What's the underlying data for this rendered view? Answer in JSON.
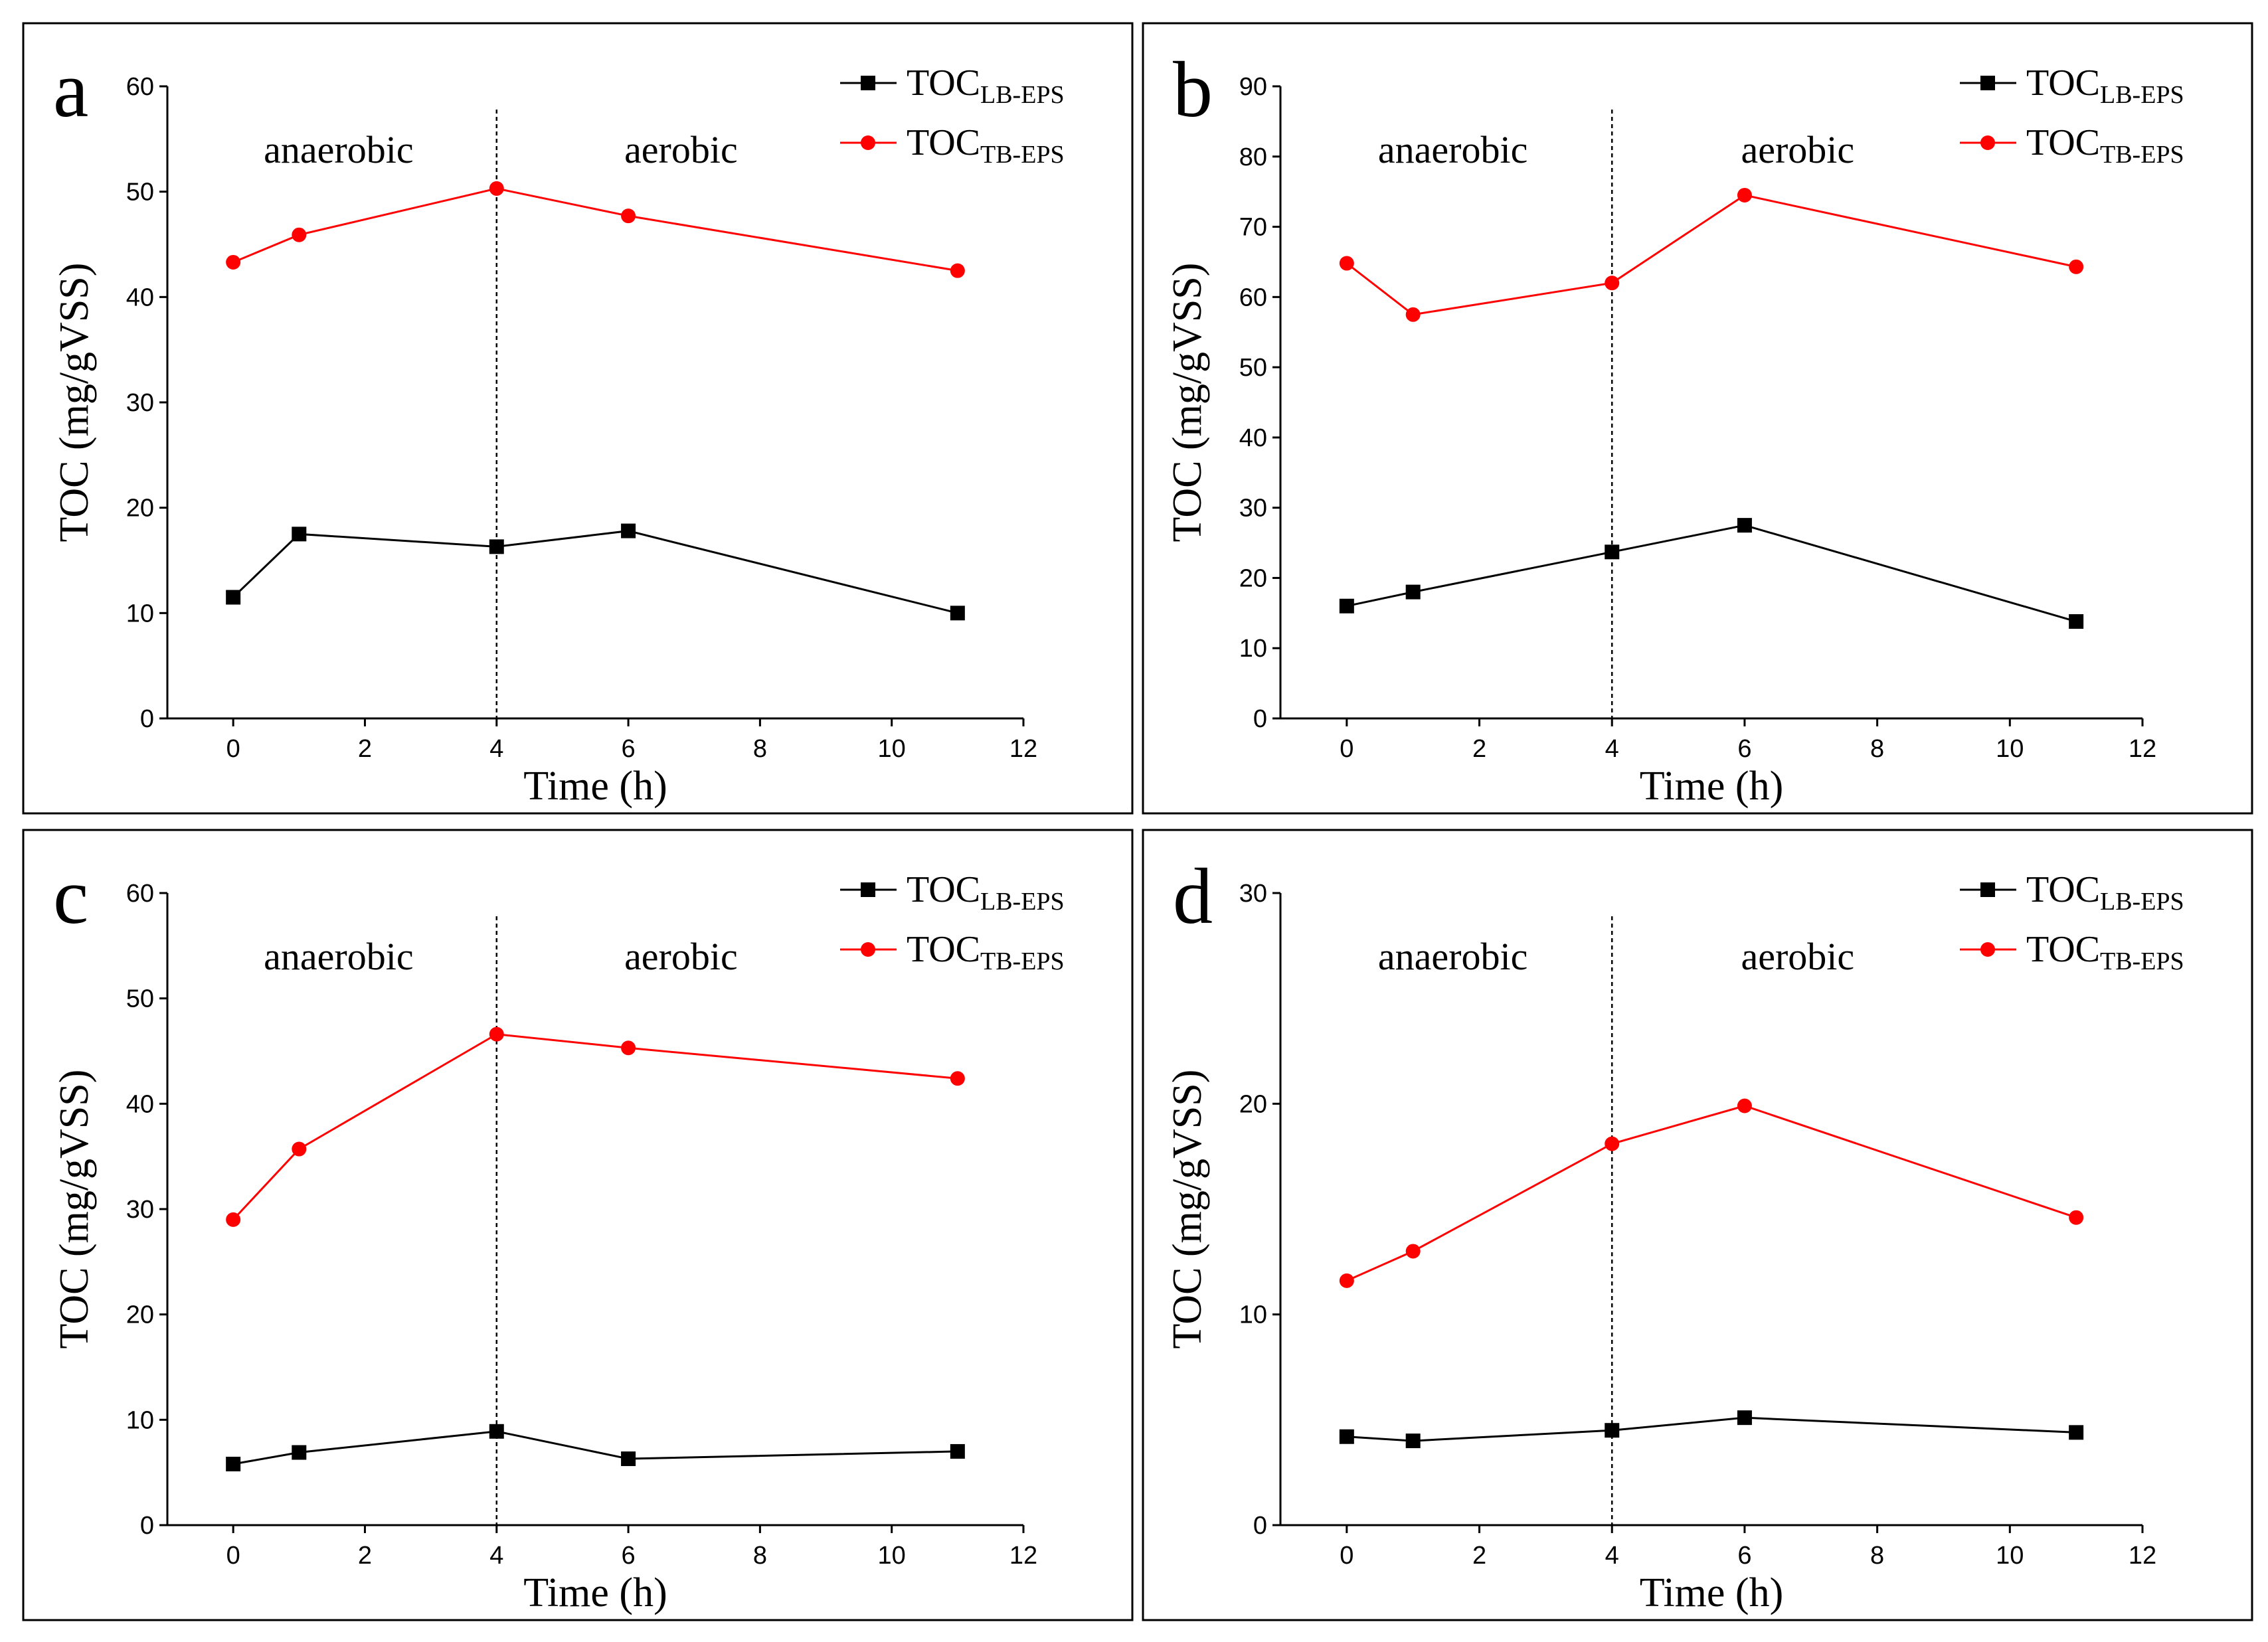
{
  "figure": {
    "series_names": {
      "lb": {
        "base": "TOC",
        "sub": "LB-EPS"
      },
      "tb": {
        "base": "TOC",
        "sub": "TB-EPS"
      }
    },
    "phase_labels": {
      "anaerobic": "anaerobic",
      "aerobic": "aerobic"
    },
    "colors": {
      "lb": "#000000",
      "tb": "#ff0000",
      "frame": "#000000"
    }
  },
  "chart_data": [
    {
      "panel": "a",
      "type": "line",
      "xlabel": "Time (h)",
      "ylabel": "TOC (mg/gVSS)",
      "xlim": [
        -1,
        12
      ],
      "ylim": [
        0,
        60
      ],
      "xticks": [
        0,
        2,
        4,
        6,
        8,
        10,
        12
      ],
      "yticks": [
        0,
        10,
        20,
        30,
        40,
        50,
        60
      ],
      "phase_boundary_x": 4,
      "x": [
        0,
        1,
        4,
        6,
        11
      ],
      "series": [
        {
          "name": "TOC LB-EPS",
          "marker": "square",
          "values": [
            11.5,
            17.5,
            16.3,
            17.8,
            10.0
          ]
        },
        {
          "name": "TOC TB-EPS",
          "marker": "circle",
          "values": [
            43.3,
            45.9,
            50.3,
            47.7,
            42.5
          ]
        }
      ]
    },
    {
      "panel": "b",
      "type": "line",
      "xlabel": "Time (h)",
      "ylabel": "TOC (mg/gVSS)",
      "xlim": [
        -1,
        12
      ],
      "ylim": [
        0,
        90
      ],
      "xticks": [
        0,
        2,
        4,
        6,
        8,
        10,
        12
      ],
      "yticks": [
        0,
        10,
        20,
        30,
        40,
        50,
        60,
        70,
        80,
        90
      ],
      "phase_boundary_x": 4,
      "x": [
        0,
        1,
        4,
        6,
        11
      ],
      "series": [
        {
          "name": "TOC LB-EPS",
          "marker": "square",
          "values": [
            16.0,
            18.0,
            23.7,
            27.5,
            13.8
          ]
        },
        {
          "name": "TOC TB-EPS",
          "marker": "circle",
          "values": [
            64.8,
            57.5,
            62.0,
            74.5,
            64.3
          ]
        }
      ]
    },
    {
      "panel": "c",
      "type": "line",
      "xlabel": "Time (h)",
      "ylabel": "TOC (mg/gVSS)",
      "xlim": [
        -1,
        12
      ],
      "ylim": [
        0,
        60
      ],
      "xticks": [
        0,
        2,
        4,
        6,
        8,
        10,
        12
      ],
      "yticks": [
        0,
        10,
        20,
        30,
        40,
        50,
        60
      ],
      "phase_boundary_x": 4,
      "x": [
        0,
        1,
        4,
        6,
        11
      ],
      "series": [
        {
          "name": "TOC LB-EPS",
          "marker": "square",
          "values": [
            5.8,
            6.9,
            8.9,
            6.3,
            7.0
          ]
        },
        {
          "name": "TOC TB-EPS",
          "marker": "circle",
          "values": [
            29.0,
            35.7,
            46.6,
            45.3,
            42.4
          ]
        }
      ]
    },
    {
      "panel": "d",
      "type": "line",
      "xlabel": "Time (h)",
      "ylabel": "TOC (mg/gVSS)",
      "xlim": [
        -1,
        12
      ],
      "ylim": [
        0,
        30
      ],
      "xticks": [
        0,
        2,
        4,
        6,
        8,
        10,
        12
      ],
      "yticks": [
        0,
        10,
        20,
        30
      ],
      "phase_boundary_x": 4,
      "x": [
        0,
        1,
        4,
        6,
        11
      ],
      "series": [
        {
          "name": "TOC LB-EPS",
          "marker": "square",
          "values": [
            4.2,
            4.0,
            4.5,
            5.1,
            4.4
          ]
        },
        {
          "name": "TOC TB-EPS",
          "marker": "circle",
          "values": [
            11.6,
            13.0,
            18.1,
            19.9,
            14.6
          ]
        }
      ]
    }
  ]
}
